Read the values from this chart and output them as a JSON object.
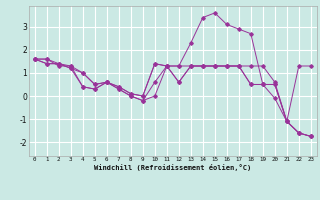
{
  "xlabel": "Windchill (Refroidissement éolien,°C)",
  "background_color": "#cbe9e4",
  "grid_color": "#ffffff",
  "line_color": "#993399",
  "xlim": [
    -0.5,
    23.5
  ],
  "ylim": [
    -2.6,
    3.9
  ],
  "xticks": [
    0,
    1,
    2,
    3,
    4,
    5,
    6,
    7,
    8,
    9,
    10,
    11,
    12,
    13,
    14,
    15,
    16,
    17,
    18,
    19,
    20,
    21,
    22,
    23
  ],
  "yticks": [
    -2,
    -1,
    0,
    1,
    2,
    3
  ],
  "series": [
    [
      1.6,
      1.6,
      1.3,
      1.3,
      1.0,
      0.5,
      0.6,
      0.4,
      0.1,
      0.0,
      1.4,
      1.3,
      1.3,
      1.3,
      1.3,
      1.3,
      1.3,
      1.3,
      1.3,
      1.3,
      0.6,
      -1.1,
      1.3,
      1.3
    ],
    [
      1.6,
      1.6,
      1.4,
      1.2,
      1.0,
      0.5,
      0.6,
      0.4,
      0.1,
      0.0,
      1.4,
      1.3,
      1.3,
      2.3,
      3.4,
      3.6,
      3.1,
      2.9,
      2.7,
      0.5,
      -0.1,
      -1.1,
      -1.6,
      -1.75
    ],
    [
      1.6,
      1.4,
      1.4,
      1.3,
      0.4,
      0.3,
      0.6,
      0.3,
      0.0,
      -0.2,
      0.0,
      1.3,
      0.6,
      1.3,
      1.3,
      1.3,
      1.3,
      1.3,
      0.5,
      0.5,
      0.5,
      -1.1,
      -1.6,
      -1.75
    ],
    [
      1.6,
      1.4,
      1.4,
      1.2,
      0.4,
      0.3,
      0.6,
      0.3,
      0.0,
      -0.2,
      0.6,
      1.3,
      0.6,
      1.3,
      1.3,
      1.3,
      1.3,
      1.3,
      0.5,
      0.5,
      0.5,
      -1.1,
      -1.6,
      -1.75
    ]
  ]
}
